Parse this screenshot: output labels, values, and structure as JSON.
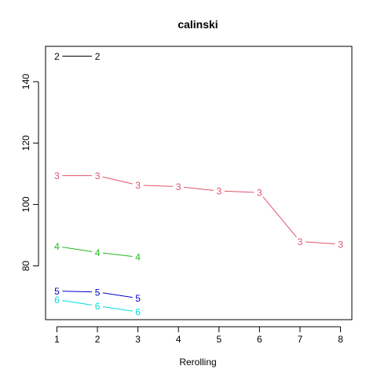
{
  "chart_data": {
    "type": "line",
    "title": "calinski",
    "xlabel": "Rerolling",
    "ylabel": "",
    "x_ticks": [
      1,
      2,
      3,
      4,
      5,
      6,
      7,
      8
    ],
    "y_ticks": [
      80,
      100,
      120,
      140
    ],
    "xlim": [
      0.72,
      8.28
    ],
    "ylim": [
      62.5,
      151.5
    ],
    "grid": false,
    "series": [
      {
        "label": "2",
        "color": "#000000",
        "x": [
          1,
          2
        ],
        "y": [
          148.3,
          148.3
        ]
      },
      {
        "label": "3",
        "color": "#DF536B",
        "x": [
          1,
          2,
          3,
          4,
          5,
          6,
          7,
          8
        ],
        "y": [
          109.4,
          109.4,
          106.3,
          105.8,
          104.4,
          103.9,
          88.0,
          87.0
        ]
      },
      {
        "label": "4",
        "color": "#22BB22",
        "x": [
          1,
          2,
          3
        ],
        "y": [
          86.4,
          84.4,
          82.9
        ]
      },
      {
        "label": "5",
        "color": "#0000CC",
        "x": [
          1,
          2,
          3
        ],
        "y": [
          71.8,
          71.5,
          69.5
        ]
      },
      {
        "label": "6",
        "color": "#00DDDD",
        "x": [
          1,
          2,
          3
        ],
        "y": [
          69.0,
          67.0,
          65.0
        ]
      }
    ]
  }
}
